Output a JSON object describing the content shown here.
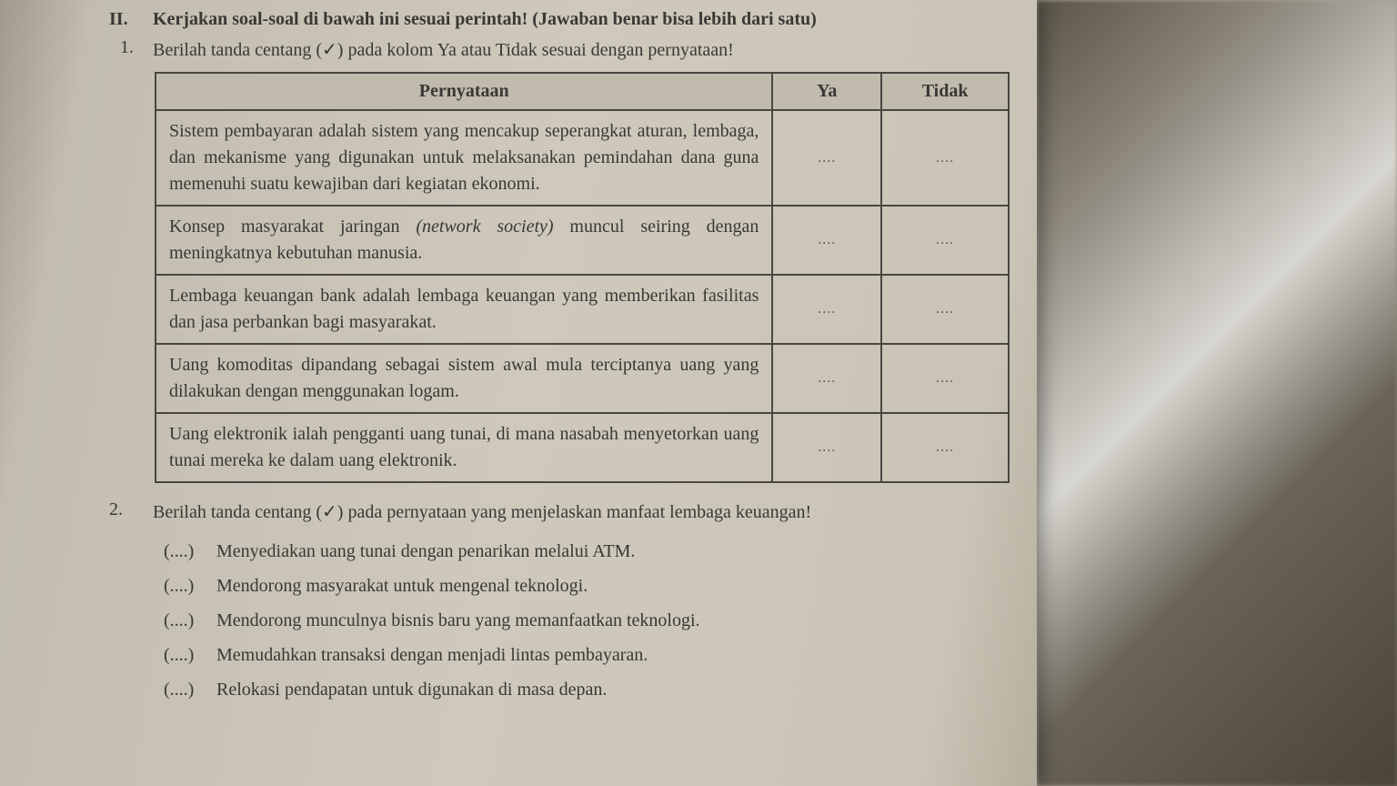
{
  "section": {
    "number": "II.",
    "title": "Kerjakan soal-soal di bawah ini sesuai perintah! (Jawaban benar bisa lebih dari satu)"
  },
  "q1": {
    "number": "1.",
    "instruction": "Berilah tanda centang (✓) pada kolom Ya atau Tidak sesuai dengan pernyataan!",
    "headers": {
      "statement": "Pernyataan",
      "ya": "Ya",
      "tidak": "Tidak"
    },
    "rows": [
      {
        "text": "Sistem pembayaran adalah sistem yang mencakup seperangkat aturan, lembaga, dan mekanisme yang digunakan untuk melaksanakan pemindahan dana guna memenuhi suatu kewajiban dari kegiatan ekonomi.",
        "ya": "....",
        "tidak": "...."
      },
      {
        "text_pre": "Konsep masyarakat jaringan ",
        "text_italic": "(network society)",
        "text_post": " muncul seiring dengan meningkatnya kebutuhan manusia.",
        "ya": "....",
        "tidak": "...."
      },
      {
        "text": "Lembaga keuangan bank adalah lembaga keuangan yang memberikan fasilitas dan jasa perbankan bagi masyarakat.",
        "ya": "....",
        "tidak": "...."
      },
      {
        "text": "Uang komoditas dipandang sebagai sistem awal mula terciptanya uang yang dilakukan dengan menggunakan logam.",
        "ya": "....",
        "tidak": "...."
      },
      {
        "text": "Uang elektronik ialah pengganti uang tunai, di mana nasabah menyetorkan uang tunai mereka ke dalam uang elektronik.",
        "ya": "....",
        "tidak": "...."
      }
    ]
  },
  "q2": {
    "number": "2.",
    "instruction": "Berilah tanda centang (✓) pada pernyataan yang menjelaskan manfaat lembaga keuangan!",
    "items": [
      {
        "paren": "(....)",
        "text": "Menyediakan uang tunai dengan penarikan melalui ATM."
      },
      {
        "paren": "(....)",
        "text": "Mendorong masyarakat untuk mengenal teknologi."
      },
      {
        "paren": "(....)",
        "text": "Mendorong munculnya bisnis baru yang memanfaatkan teknologi."
      },
      {
        "paren": "(....)",
        "text": "Memudahkan transaksi dengan menjadi lintas pembayaran."
      },
      {
        "paren": "(....)",
        "text": "Relokasi pendapatan untuk digunakan di masa depan."
      }
    ]
  },
  "colors": {
    "text": "#3a3835",
    "border": "#4a4640",
    "header_bg": "#c0bbad",
    "page_bg": "#cfc9bc"
  }
}
